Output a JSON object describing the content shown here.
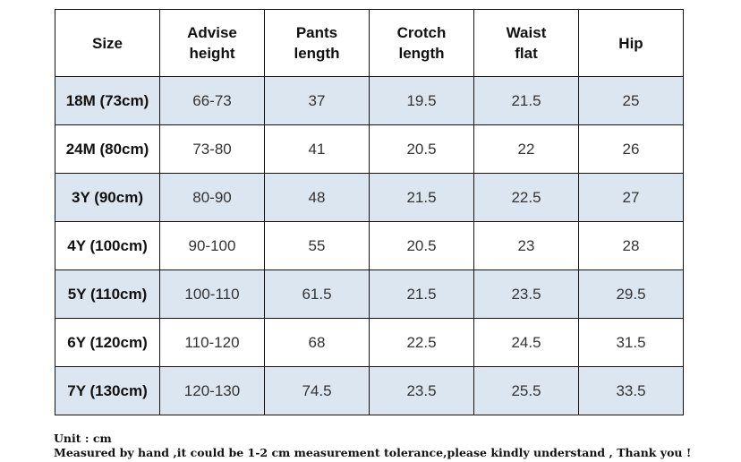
{
  "table": {
    "headers": [
      [
        "Size"
      ],
      [
        "Advise",
        "height"
      ],
      [
        "Pants",
        "length"
      ],
      [
        "Crotch",
        "length"
      ],
      [
        "Waist",
        "flat"
      ],
      [
        "Hip"
      ]
    ],
    "rows": [
      [
        "18M (73cm)",
        "66-73",
        "37",
        "19.5",
        "21.5",
        "25"
      ],
      [
        "24M (80cm)",
        "73-80",
        "41",
        "20.5",
        "22",
        "26"
      ],
      [
        "3Y (90cm)",
        "80-90",
        "48",
        "21.5",
        "22.5",
        "27"
      ],
      [
        "4Y (100cm)",
        "90-100",
        "55",
        "20.5",
        "23",
        "28"
      ],
      [
        "5Y (110cm)",
        "100-110",
        "61.5",
        "21.5",
        "23.5",
        "29.5"
      ],
      [
        "6Y (120cm)",
        "110-120",
        "68",
        "22.5",
        "24.5",
        "31.5"
      ],
      [
        "7Y (130cm)",
        "120-130",
        "74.5",
        "23.5",
        "25.5",
        "33.5"
      ]
    ],
    "shaded_row_color": "#dce6f1",
    "border_color": "#111111"
  },
  "notes": {
    "unit": "Unit : cm",
    "tolerance": "Measured by hand ,it could be 1-2 cm measurement tolerance,please kindly understand , Thank you !"
  }
}
